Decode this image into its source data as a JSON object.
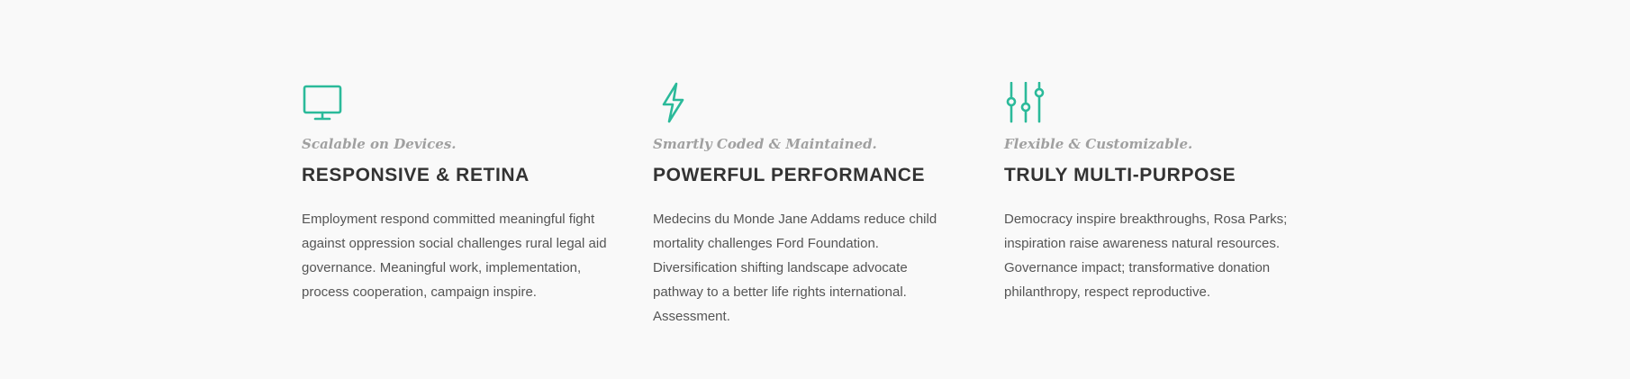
{
  "colors": {
    "accent": "#2bba9a",
    "background": "#f9f9f9",
    "heading": "#333333",
    "tagline": "#a0a0a0",
    "body": "#555555"
  },
  "features": [
    {
      "icon": "monitor-icon",
      "tagline": "Scalable on Devices.",
      "title": "RESPONSIVE & RETINA",
      "body": "Employment respond committed meaningful fight against oppression social challenges rural legal aid governance. Meaningful work, implementation, process cooperation, campaign inspire."
    },
    {
      "icon": "lightning-icon",
      "tagline": "Smartly Coded & Maintained.",
      "title": "POWERFUL PERFORMANCE",
      "body": "Medecins du Monde Jane Addams reduce child mortality challenges Ford Foundation. Diversification shifting landscape advocate pathway to a better life rights international. Assessment."
    },
    {
      "icon": "sliders-icon",
      "tagline": "Flexible & Customizable.",
      "title": "TRULY MULTI-PURPOSE",
      "body": "Democracy inspire breakthroughs, Rosa Parks; inspiration raise awareness natural resources. Governance impact; transformative donation philanthropy, respect reproductive."
    }
  ]
}
